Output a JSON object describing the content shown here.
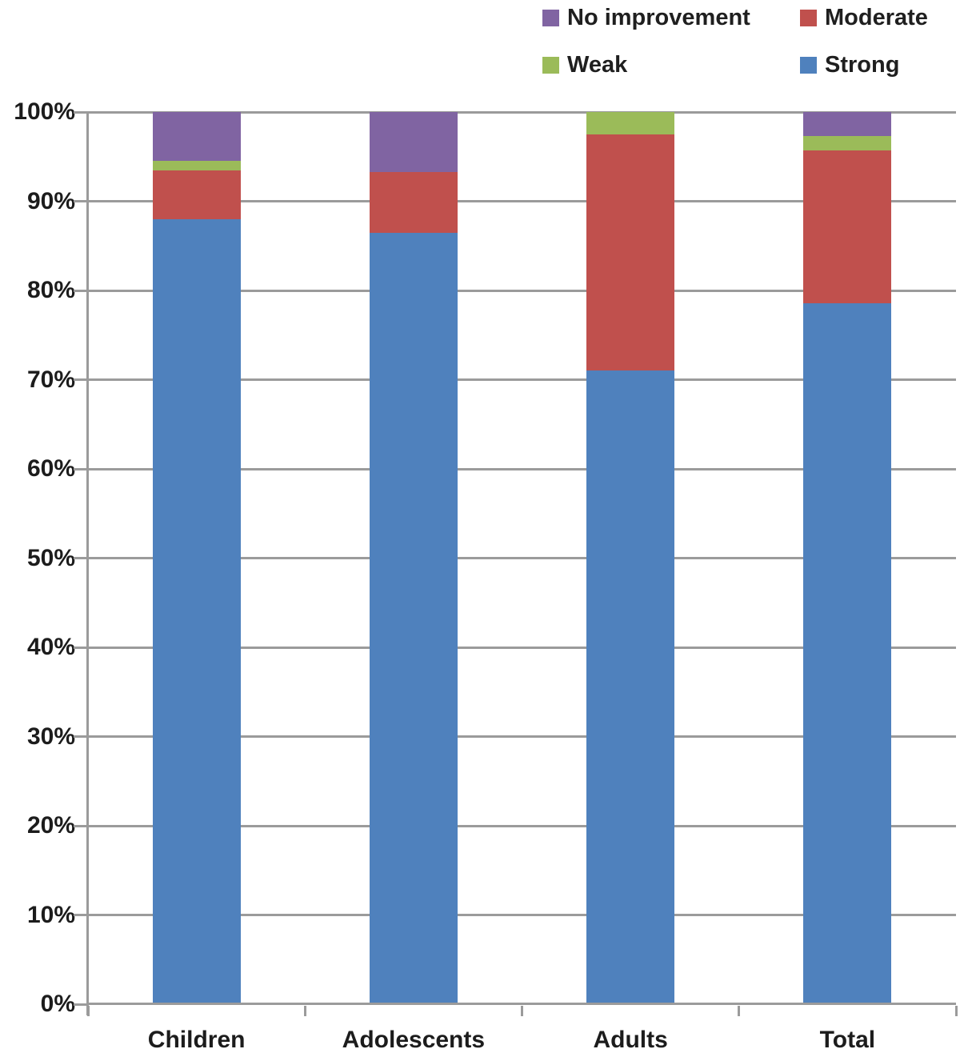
{
  "chart_data": {
    "type": "bar",
    "stacked": true,
    "percent_stacked": true,
    "title": "",
    "xlabel": "",
    "ylabel": "",
    "ylim": [
      0,
      100
    ],
    "grid": true,
    "gridline_step": 10,
    "y_tick_labels": [
      "0%",
      "10%",
      "20%",
      "30%",
      "40%",
      "50%",
      "60%",
      "70%",
      "80%",
      "90%",
      "100%"
    ],
    "categories": [
      "Children",
      "Adolescents",
      "Adults",
      "Total"
    ],
    "series": [
      {
        "name": "Strong",
        "color": "#4F81BD",
        "values": [
          88.0,
          86.5,
          71.0,
          78.6
        ]
      },
      {
        "name": "Moderate",
        "color": "#C0504D",
        "values": [
          5.5,
          6.8,
          26.5,
          17.1
        ]
      },
      {
        "name": "Weak",
        "color": "#9BBB59",
        "values": [
          1.0,
          0.0,
          2.5,
          1.6
        ]
      },
      {
        "name": "No improvement",
        "color": "#8064A2",
        "values": [
          5.5,
          6.7,
          0.0,
          2.7
        ]
      }
    ],
    "legend": {
      "position": "top",
      "order": [
        "No improvement",
        "Moderate",
        "Weak",
        "Strong"
      ]
    },
    "colors": {
      "gridline": "#9b9b9b",
      "axis_line": "#9b9b9b",
      "axis_text": "#1c1c1c",
      "legend_text": "#1f1f1f",
      "background": "#ffffff"
    }
  }
}
